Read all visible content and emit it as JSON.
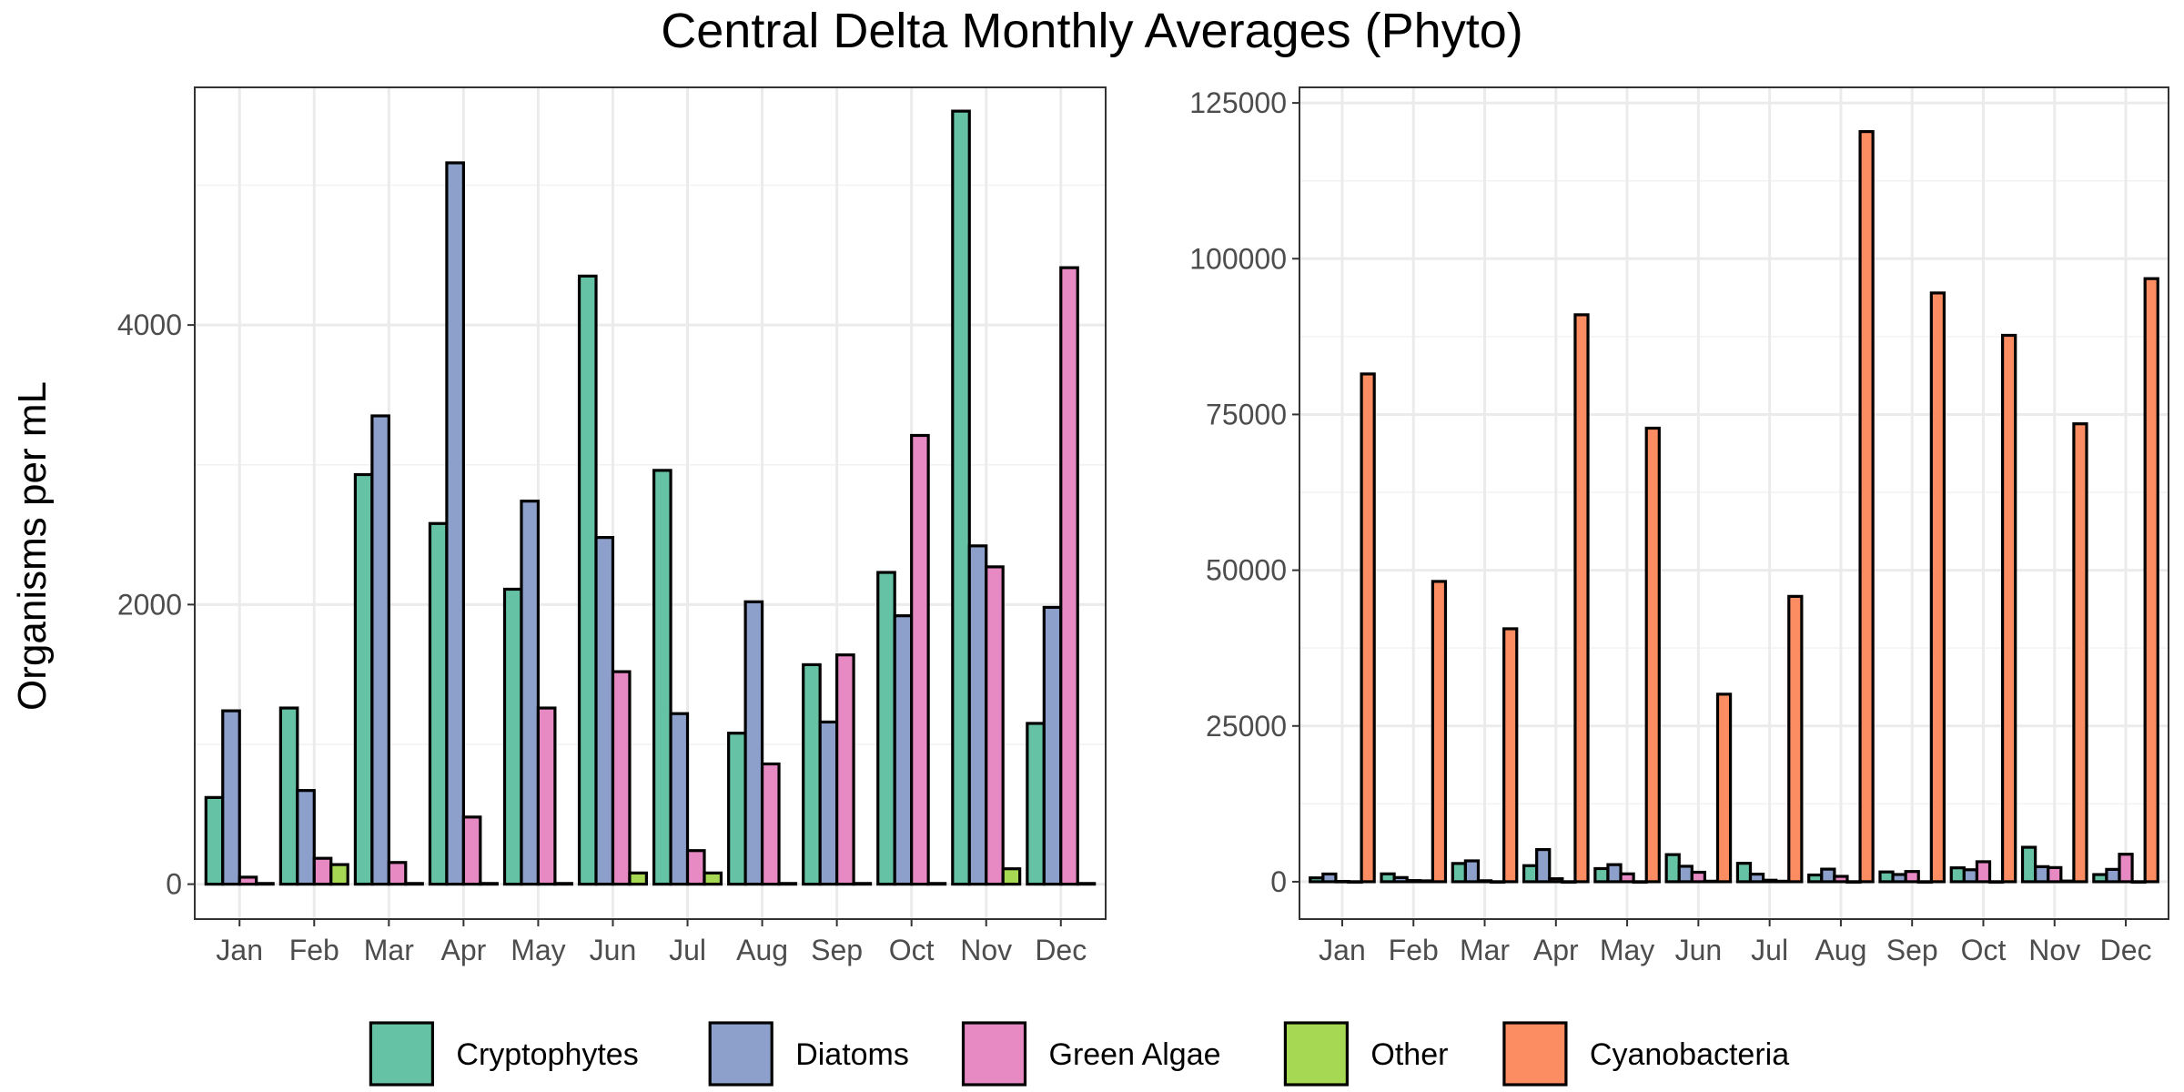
{
  "chart_data": {
    "type": "bar",
    "title": "Central Delta Monthly Averages (Phyto)",
    "ylabel": "Organisms per mL",
    "xlabel": "",
    "categories": [
      "Jan",
      "Feb",
      "Mar",
      "Apr",
      "May",
      "Jun",
      "Jul",
      "Aug",
      "Sep",
      "Oct",
      "Nov",
      "Dec"
    ],
    "legend_position": "bottom",
    "grid": true,
    "legend": [
      {
        "name": "Cryptophytes",
        "color": "#66c2a5"
      },
      {
        "name": "Diatoms",
        "color": "#8da0cb"
      },
      {
        "name": "Green Algae",
        "color": "#e78ac3"
      },
      {
        "name": "Other",
        "color": "#a6d854"
      },
      {
        "name": "Cyanobacteria",
        "color": "#fc8d62"
      }
    ],
    "panels": [
      {
        "ylim": [
          -250,
          5700
        ],
        "yticks": [
          0,
          2000,
          4000
        ],
        "series": [
          {
            "name": "Cryptophytes",
            "color": "#66c2a5",
            "values": [
              620,
              1260,
              2930,
              2580,
              2110,
              4350,
              2960,
              1080,
              1570,
              2230,
              5530,
              1150
            ]
          },
          {
            "name": "Diatoms",
            "color": "#8da0cb",
            "values": [
              1240,
              670,
              3350,
              5160,
              2740,
              2480,
              1220,
              2020,
              1160,
              1920,
              2420,
              1980
            ]
          },
          {
            "name": "Green Algae",
            "color": "#e78ac3",
            "values": [
              50,
              185,
              155,
              480,
              1260,
              1520,
              240,
              860,
              1640,
              3210,
              2270,
              4410
            ]
          },
          {
            "name": "Other",
            "color": "#a6d854",
            "values": [
              5,
              140,
              5,
              5,
              5,
              80,
              80,
              5,
              5,
              5,
              110,
              5
            ]
          }
        ]
      },
      {
        "ylim": [
          -6000,
          127500
        ],
        "yticks": [
          0,
          25000,
          50000,
          75000,
          100000,
          125000
        ],
        "series": [
          {
            "name": "Cryptophytes",
            "color": "#66c2a5",
            "values": [
              620,
              1260,
              2930,
              2580,
              2110,
              4350,
              2960,
              1080,
              1570,
              2230,
              5530,
              1150
            ]
          },
          {
            "name": "Diatoms",
            "color": "#8da0cb",
            "values": [
              1240,
              670,
              3350,
              5160,
              2740,
              2480,
              1220,
              2020,
              1160,
              1920,
              2420,
              1980
            ]
          },
          {
            "name": "Green Algae",
            "color": "#e78ac3",
            "values": [
              50,
              185,
              155,
              480,
              1260,
              1520,
              240,
              860,
              1640,
              3210,
              2270,
              4410
            ]
          },
          {
            "name": "Other",
            "color": "#a6d854",
            "values": [
              5,
              140,
              5,
              5,
              5,
              80,
              80,
              5,
              5,
              5,
              110,
              5
            ]
          },
          {
            "name": "Cyanobacteria",
            "color": "#fc8d62",
            "values": [
              81500,
              48200,
              40600,
              91000,
              72800,
              30100,
              45800,
              120400,
              94500,
              87700,
              73500,
              96800
            ]
          }
        ]
      }
    ]
  }
}
